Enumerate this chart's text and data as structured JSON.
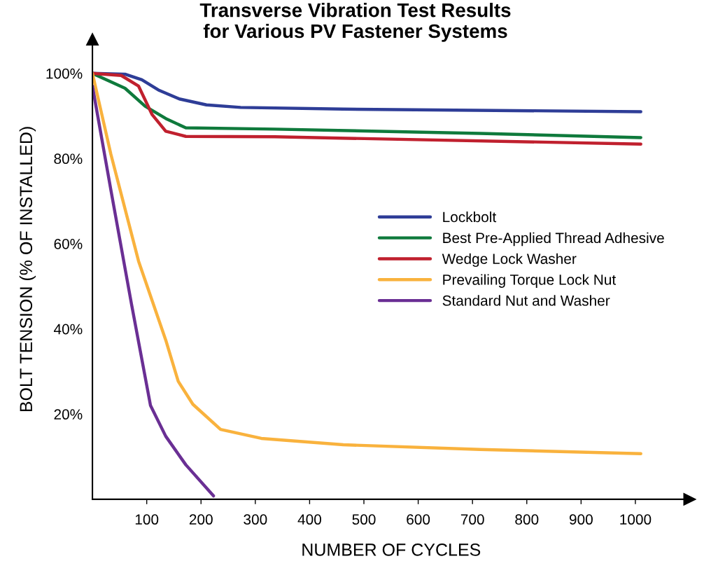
{
  "chart_data": {
    "type": "line",
    "title": "Transverse Vibration Test Results\nfor Various PV Fastener Systems",
    "xlabel": "NUMBER OF CYCLES",
    "ylabel": "BOLT TENSION (% OF INSTALLED)",
    "xlim": [
      0,
      1100
    ],
    "ylim": [
      0,
      108
    ],
    "xticks": [
      100,
      200,
      300,
      400,
      500,
      600,
      700,
      800,
      900,
      1000
    ],
    "yticks": [
      {
        "value": 20,
        "label": "20%"
      },
      {
        "value": 40,
        "label": "40%"
      },
      {
        "value": 60,
        "label": "60%"
      },
      {
        "value": 80,
        "label": "80%"
      },
      {
        "value": 100,
        "label": "100%"
      }
    ],
    "grid": false,
    "legend": "center right",
    "marker": "none",
    "line_style": "solid",
    "series": [
      {
        "name": "Lockbolt",
        "color": "#2e3d97",
        "x": [
          0,
          60,
          91,
          123,
          160,
          210,
          273,
          462,
          1010
        ],
        "values": [
          100,
          99.8,
          98.5,
          96,
          94,
          92.6,
          92,
          91.6,
          91
        ]
      },
      {
        "name": "Best Pre-Applied Thread Adhesive",
        "color": "#0f7a3c",
        "x": [
          0,
          60,
          97,
          135,
          172,
          336,
          714,
          1010
        ],
        "values": [
          100,
          96.5,
          92.3,
          89.4,
          87.2,
          86.9,
          85.9,
          84.9
        ]
      },
      {
        "name": "Wedge Lock Washer",
        "color": "#c0202e",
        "x": [
          0,
          53,
          85,
          110,
          135,
          172,
          336,
          1010
        ],
        "values": [
          100,
          99.5,
          97,
          90.3,
          86.4,
          85.2,
          85.1,
          83.4
        ]
      },
      {
        "name": "Prevailing Torque Lock Nut",
        "color": "#f9b23d",
        "x": [
          0,
          34,
          85,
          135,
          158,
          185,
          236,
          311,
          462,
          714,
          1010
        ],
        "values": [
          100,
          81,
          55.9,
          37.4,
          27.7,
          22.3,
          16.4,
          14.3,
          12.8,
          11.7,
          10.7
        ]
      },
      {
        "name": "Standard Nut and Washer",
        "color": "#6a2f94",
        "x": [
          0,
          34,
          72,
          107,
          135,
          172,
          223
        ],
        "values": [
          97,
          72.6,
          45.8,
          22,
          14.8,
          8.1,
          0.8
        ]
      }
    ]
  }
}
